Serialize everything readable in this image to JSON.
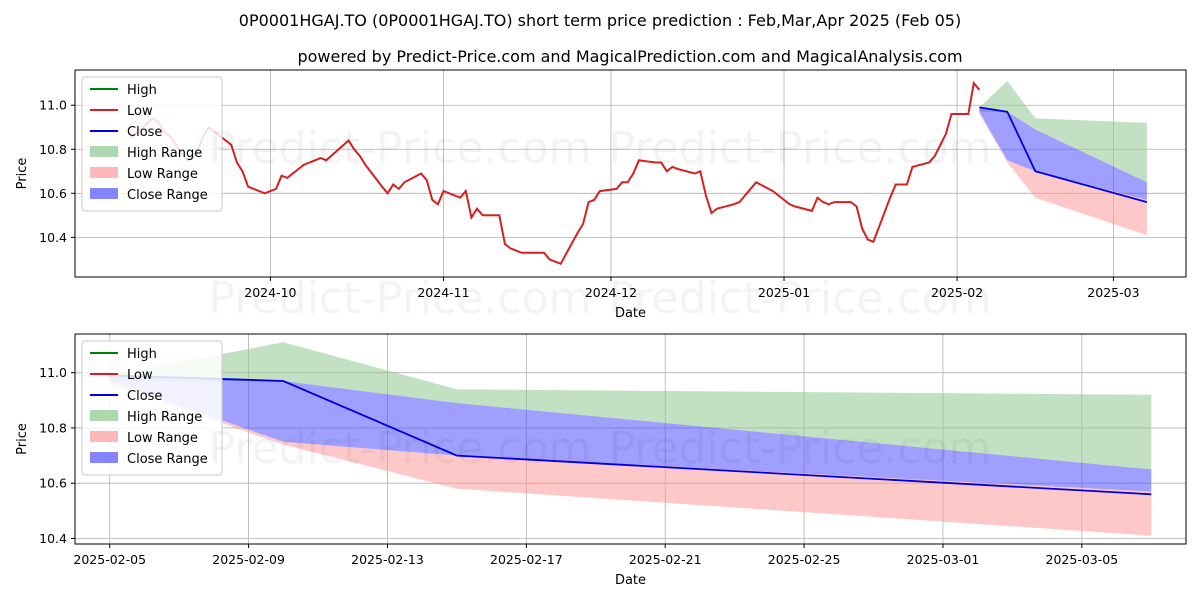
{
  "figure": {
    "title": "0P0001HGAJ.TO (0P0001HGAJ.TO) short term price prediction : Feb,Mar,Apr 2025 (Feb 05)",
    "subtitle": "powered by Predict-Price.com and MagicalPrediction.com and MagicalAnalysis.com",
    "watermark": "Predict-Price.com"
  },
  "colors": {
    "high": "#008000",
    "low": "#d62020",
    "close": "#0000dd",
    "high_range": "#8fc88f",
    "low_range": "#ff9a9a",
    "close_range": "#5050ff",
    "grid": "#b0b0b0"
  },
  "chart_data": [
    {
      "type": "line",
      "xlabel": "Date",
      "ylabel": "Price",
      "xlim": [
        "2024-08-27",
        "2025-03-14"
      ],
      "ylim": [
        10.22,
        11.16
      ],
      "x_ticks": [
        "2024-10-01",
        "2024-11-01",
        "2024-12-01",
        "2025-01-01",
        "2025-02-01",
        "2025-03-01"
      ],
      "x_tick_labels": [
        "2024-10",
        "2024-11",
        "2024-12",
        "2025-01",
        "2025-02",
        "2025-03"
      ],
      "y_ticks": [
        10.4,
        10.6,
        10.8,
        11.0
      ],
      "y_tick_labels": [
        "10.4",
        "10.6",
        "10.8",
        "11.0"
      ],
      "grid": true,
      "legend": {
        "placement": "top-left",
        "entries": [
          {
            "label": "High",
            "kind": "line",
            "color_key": "high"
          },
          {
            "label": "Low",
            "kind": "line",
            "color_key": "low"
          },
          {
            "label": "Close",
            "kind": "line",
            "color_key": "close"
          },
          {
            "label": "High Range",
            "kind": "patch",
            "color_key": "high_range"
          },
          {
            "label": "Low Range",
            "kind": "patch",
            "color_key": "low_range"
          },
          {
            "label": "Close Range",
            "kind": "patch",
            "color_key": "close_range"
          }
        ]
      },
      "history_low": {
        "name": "Low",
        "x": [
          "2024-09-06",
          "2024-09-09",
          "2024-09-10",
          "2024-09-11",
          "2024-09-12",
          "2024-09-13",
          "2024-09-16",
          "2024-09-17",
          "2024-09-18",
          "2024-09-19",
          "2024-09-20",
          "2024-09-23",
          "2024-09-24",
          "2024-09-25",
          "2024-09-26",
          "2024-09-27",
          "2024-09-30",
          "2024-10-01",
          "2024-10-02",
          "2024-10-03",
          "2024-10-04",
          "2024-10-07",
          "2024-10-08",
          "2024-10-09",
          "2024-10-10",
          "2024-10-11",
          "2024-10-15",
          "2024-10-16",
          "2024-10-17",
          "2024-10-18",
          "2024-10-21",
          "2024-10-22",
          "2024-10-23",
          "2024-10-24",
          "2024-10-25",
          "2024-10-28",
          "2024-10-29",
          "2024-10-30",
          "2024-10-31",
          "2024-11-01",
          "2024-11-04",
          "2024-11-05",
          "2024-11-06",
          "2024-11-07",
          "2024-11-08",
          "2024-11-11",
          "2024-11-12",
          "2024-11-13",
          "2024-11-14",
          "2024-11-15",
          "2024-11-18",
          "2024-11-19",
          "2024-11-20",
          "2024-11-21",
          "2024-11-22",
          "2024-11-25",
          "2024-11-26",
          "2024-11-27",
          "2024-11-28",
          "2024-11-29",
          "2024-12-02",
          "2024-12-03",
          "2024-12-04",
          "2024-12-05",
          "2024-12-06",
          "2024-12-09",
          "2024-12-10",
          "2024-12-11",
          "2024-12-12",
          "2024-12-13",
          "2024-12-16",
          "2024-12-17",
          "2024-12-18",
          "2024-12-19",
          "2024-12-20",
          "2024-12-23",
          "2024-12-24",
          "2024-12-27",
          "2024-12-30",
          "2024-12-31",
          "2025-01-02",
          "2025-01-03",
          "2025-01-06",
          "2025-01-07",
          "2025-01-08",
          "2025-01-09",
          "2025-01-10",
          "2025-01-13",
          "2025-01-14",
          "2025-01-15",
          "2025-01-16",
          "2025-01-17",
          "2025-01-20",
          "2025-01-21",
          "2025-01-22",
          "2025-01-23",
          "2025-01-24",
          "2025-01-27",
          "2025-01-28",
          "2025-01-29",
          "2025-01-30",
          "2025-01-31",
          "2025-02-03",
          "2025-02-04",
          "2025-02-05"
        ],
        "y": [
          10.85,
          10.92,
          10.94,
          10.92,
          10.88,
          10.86,
          10.75,
          10.76,
          10.8,
          10.86,
          10.9,
          10.84,
          10.82,
          10.74,
          10.7,
          10.63,
          10.6,
          10.61,
          10.62,
          10.68,
          10.67,
          10.73,
          10.74,
          10.75,
          10.76,
          10.75,
          10.84,
          10.8,
          10.77,
          10.73,
          10.63,
          10.6,
          10.64,
          10.62,
          10.65,
          10.69,
          10.66,
          10.57,
          10.55,
          10.61,
          10.58,
          10.61,
          10.49,
          10.53,
          10.5,
          10.5,
          10.37,
          10.35,
          10.34,
          10.33,
          10.33,
          10.33,
          10.3,
          10.29,
          10.28,
          10.42,
          10.46,
          10.56,
          10.57,
          10.61,
          10.62,
          10.65,
          10.65,
          10.69,
          10.75,
          10.74,
          10.74,
          10.7,
          10.72,
          10.71,
          10.69,
          10.7,
          10.59,
          10.51,
          10.53,
          10.55,
          10.56,
          10.65,
          10.61,
          10.59,
          10.55,
          10.54,
          10.52,
          10.58,
          10.56,
          10.55,
          10.56,
          10.56,
          10.54,
          10.44,
          10.39,
          10.38,
          10.58,
          10.64,
          10.64,
          10.64,
          10.72,
          10.74,
          10.77,
          10.82,
          10.87,
          10.96,
          10.96,
          11.1,
          11.07
        ]
      },
      "forecast": {
        "x": [
          "2025-02-05",
          "2025-02-10",
          "2025-02-15",
          "2025-03-07"
        ],
        "high_upper": [
          10.99,
          11.11,
          10.94,
          10.92
        ],
        "high_lower": [
          10.97,
          10.97,
          10.89,
          10.65
        ],
        "low_upper": [
          10.97,
          10.75,
          10.7,
          10.57
        ],
        "low_lower": [
          10.96,
          10.74,
          10.58,
          10.41
        ],
        "close_upper": [
          10.99,
          10.97,
          10.89,
          10.65
        ],
        "close_lower": [
          10.97,
          10.75,
          10.7,
          10.57
        ],
        "close": [
          10.99,
          10.97,
          10.7,
          10.56
        ]
      }
    },
    {
      "type": "line",
      "xlabel": "Date",
      "ylabel": "Price",
      "xlim": [
        "2025-02-04",
        "2025-03-08"
      ],
      "ylim": [
        10.38,
        11.14
      ],
      "x_ticks": [
        "2025-02-05",
        "2025-02-09",
        "2025-02-13",
        "2025-02-17",
        "2025-02-21",
        "2025-02-25",
        "2025-03-01",
        "2025-03-05"
      ],
      "x_tick_labels": [
        "2025-02-05",
        "2025-02-09",
        "2025-02-13",
        "2025-02-17",
        "2025-02-21",
        "2025-02-25",
        "2025-03-01",
        "2025-03-05"
      ],
      "y_ticks": [
        10.4,
        10.6,
        10.8,
        11.0
      ],
      "y_tick_labels": [
        "10.4",
        "10.6",
        "10.8",
        "11.0"
      ],
      "grid": true,
      "legend": {
        "placement": "top-left",
        "entries": [
          {
            "label": "High",
            "kind": "line",
            "color_key": "high"
          },
          {
            "label": "Low",
            "kind": "line",
            "color_key": "low"
          },
          {
            "label": "Close",
            "kind": "line",
            "color_key": "close"
          },
          {
            "label": "High Range",
            "kind": "patch",
            "color_key": "high_range"
          },
          {
            "label": "Low Range",
            "kind": "patch",
            "color_key": "low_range"
          },
          {
            "label": "Close Range",
            "kind": "patch",
            "color_key": "close_range"
          }
        ]
      },
      "forecast": {
        "x": [
          "2025-02-05",
          "2025-02-10",
          "2025-02-15",
          "2025-03-07"
        ],
        "high_upper": [
          10.99,
          11.11,
          10.94,
          10.92
        ],
        "high_lower": [
          10.97,
          10.97,
          10.89,
          10.65
        ],
        "low_upper": [
          10.97,
          10.75,
          10.7,
          10.57
        ],
        "low_lower": [
          10.96,
          10.74,
          10.58,
          10.41
        ],
        "close_upper": [
          10.99,
          10.97,
          10.89,
          10.65
        ],
        "close_lower": [
          10.97,
          10.75,
          10.7,
          10.57
        ],
        "close": [
          10.99,
          10.97,
          10.7,
          10.56
        ]
      }
    }
  ]
}
